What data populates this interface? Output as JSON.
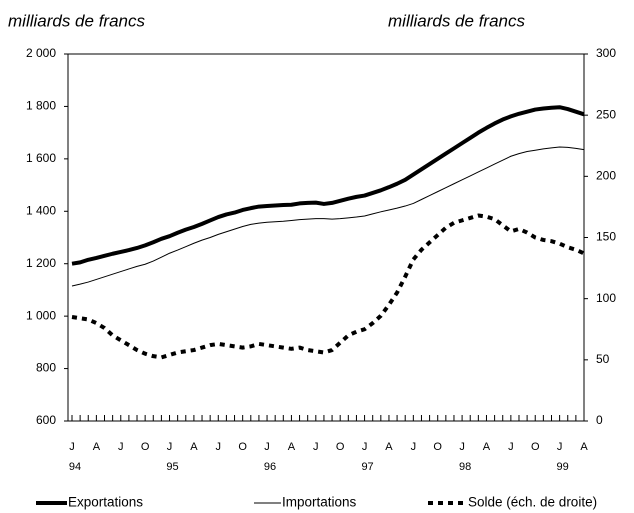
{
  "chart_data": {
    "type": "line",
    "ylabel": "milliards de francs",
    "y2label": "milliards de francs",
    "categories": [
      "J",
      null,
      null,
      "A",
      null,
      null,
      "J",
      null,
      null,
      "O",
      null,
      null,
      "J",
      null,
      null,
      "A",
      null,
      null,
      "J",
      null,
      null,
      "O",
      null,
      null,
      "J",
      null,
      null,
      "A",
      null,
      null,
      "J",
      null,
      null,
      "O",
      null,
      null,
      "J",
      null,
      null,
      "A",
      null,
      null,
      "J",
      null,
      null,
      "O",
      null,
      null,
      "J",
      null,
      null,
      "A",
      null,
      null,
      "J",
      null,
      null,
      "O",
      null,
      null,
      "J",
      null,
      null,
      "A"
    ],
    "years": [
      "94",
      null,
      null,
      null,
      null,
      null,
      null,
      null,
      null,
      null,
      null,
      null,
      "95",
      null,
      null,
      null,
      null,
      null,
      null,
      null,
      null,
      null,
      null,
      null,
      "96",
      null,
      null,
      null,
      null,
      null,
      null,
      null,
      null,
      null,
      null,
      null,
      "97",
      null,
      null,
      null,
      null,
      null,
      null,
      null,
      null,
      null,
      null,
      null,
      "98",
      null,
      null,
      null,
      null,
      null,
      null,
      null,
      null,
      null,
      null,
      null,
      "99",
      null,
      null,
      null
    ],
    "ylim": [
      600,
      2000
    ],
    "yticks": [
      600,
      800,
      {
        "value": 1000,
        "label": "1 000"
      },
      {
        "value": 1200,
        "label": "1 200"
      },
      {
        "value": 1400,
        "label": "1 400"
      },
      {
        "value": 1600,
        "label": "1 600"
      },
      {
        "value": 1800,
        "label": "1 800"
      },
      {
        "value": 2000,
        "label": "2 000"
      }
    ],
    "y2lim": [
      0,
      300
    ],
    "y2ticks": [
      0,
      50,
      100,
      150,
      200,
      250,
      300
    ],
    "series": [
      {
        "name": "Exportations",
        "color": "#000000",
        "width": 4,
        "dash": "none",
        "values": [
          1200,
          1205,
          1215,
          1222,
          1230,
          1238,
          1245,
          1252,
          1260,
          1270,
          1282,
          1295,
          1305,
          1318,
          1330,
          1340,
          1352,
          1365,
          1378,
          1388,
          1395,
          1405,
          1412,
          1418,
          1420,
          1422,
          1424,
          1425,
          1430,
          1432,
          1433,
          1428,
          1432,
          1440,
          1448,
          1455,
          1460,
          1470,
          1480,
          1492,
          1505,
          1520,
          1540,
          1560,
          1580,
          1600,
          1620,
          1640,
          1660,
          1680,
          1700,
          1718,
          1735,
          1750,
          1762,
          1772,
          1780,
          1788,
          1792,
          1795,
          1797,
          1790,
          1780,
          1770
        ]
      },
      {
        "name": "Importations",
        "color": "#000000",
        "width": 1,
        "dash": "none",
        "values": [
          1115,
          1122,
          1130,
          1140,
          1150,
          1160,
          1170,
          1180,
          1190,
          1198,
          1210,
          1225,
          1240,
          1252,
          1265,
          1278,
          1290,
          1300,
          1312,
          1322,
          1332,
          1342,
          1350,
          1355,
          1358,
          1360,
          1362,
          1365,
          1368,
          1370,
          1372,
          1372,
          1370,
          1372,
          1375,
          1378,
          1382,
          1390,
          1398,
          1405,
          1412,
          1420,
          1430,
          1445,
          1460,
          1475,
          1490,
          1505,
          1520,
          1535,
          1550,
          1565,
          1580,
          1595,
          1610,
          1620,
          1628,
          1633,
          1638,
          1642,
          1645,
          1644,
          1640,
          1635
        ]
      },
      {
        "name": "Solde (éch. de droite)",
        "color": "#000000",
        "width": 4,
        "dash": "5,5",
        "axis": "y2",
        "values": [
          85,
          84,
          83,
          80,
          76,
          70,
          66,
          62,
          58,
          55,
          53,
          52,
          54,
          56,
          57,
          58,
          60,
          62,
          63,
          62,
          61,
          60,
          61,
          63,
          62,
          61,
          60,
          59,
          60,
          58,
          57,
          56,
          58,
          64,
          70,
          73,
          75,
          80,
          86,
          95,
          105,
          118,
          132,
          140,
          146,
          152,
          158,
          162,
          164,
          166,
          168,
          167,
          165,
          160,
          155,
          157,
          154,
          150,
          148,
          147,
          145,
          142,
          140,
          137
        ]
      }
    ]
  }
}
